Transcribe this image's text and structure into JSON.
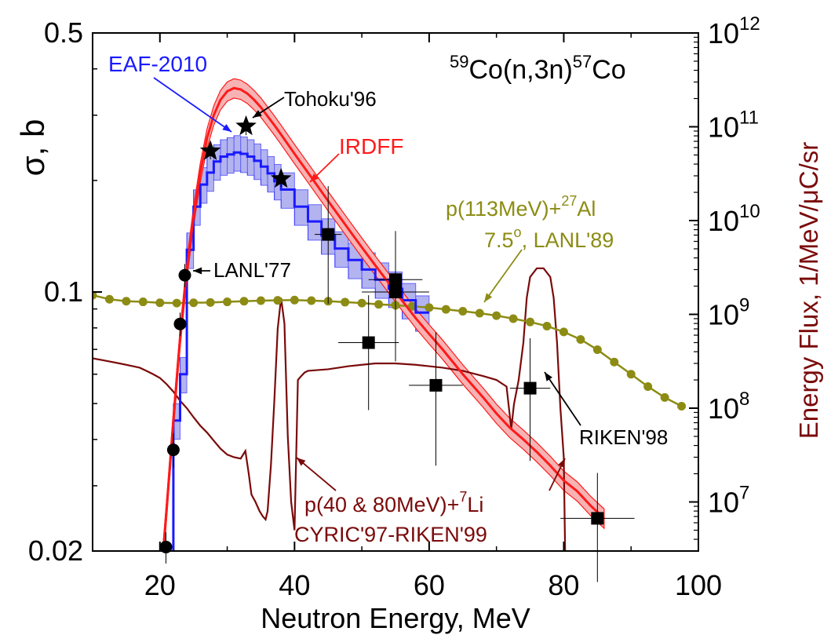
{
  "chart_data": {
    "type": "line",
    "title": "",
    "reaction": {
      "pre": "59",
      "mid": "Co(n,3n)",
      "post": "57",
      "tail": "Co"
    },
    "xlabel": "Neutron Energy,  MeV",
    "ylabel": "σ, b",
    "y2label": {
      "pre": "Energy Flux, 1/MeV/",
      "mu": "μ",
      "post": "C/sr"
    },
    "xlim": [
      10,
      100
    ],
    "ylim": [
      0.02,
      0.5
    ],
    "yscale": "log",
    "y2lim": [
      3000000.0,
      1000000000000.0
    ],
    "y2scale": "log",
    "xticks": [
      20,
      40,
      60,
      80,
      100
    ],
    "yticks": [
      {
        "value": 0.5,
        "label": "0.5"
      },
      {
        "value": 0.1,
        "label": "0.1"
      },
      {
        "value": 0.02,
        "label": "0.02"
      }
    ],
    "y2ticks": [
      {
        "value": 10000000.0,
        "base": "10",
        "exp": "7"
      },
      {
        "value": 100000000.0,
        "base": "10",
        "exp": "8"
      },
      {
        "value": 1000000000.0,
        "base": "10",
        "exp": "9"
      },
      {
        "value": 10000000000.0,
        "base": "10",
        "exp": "10"
      },
      {
        "value": 100000000000.0,
        "base": "10",
        "exp": "11"
      },
      {
        "value": 1000000000000.0,
        "base": "10",
        "exp": "12"
      }
    ],
    "colors": {
      "eaf": "#1a1aff",
      "eaf_band": "#b3b3f0",
      "irdff": "#ff1a1a",
      "irdff_band": "#f7b3b3",
      "al_spectrum": "#8c8c14",
      "li_spectrum": "#7a0a0a",
      "data": "#000000"
    },
    "eaf2010": {
      "label": "EAF-2010",
      "steps": [
        [
          21,
          22,
          0.017
        ],
        [
          22,
          23,
          0.045
        ],
        [
          23,
          24,
          0.06
        ],
        [
          24,
          25,
          0.13
        ],
        [
          25,
          26,
          0.17
        ],
        [
          26,
          27,
          0.195
        ],
        [
          27,
          28,
          0.21
        ],
        [
          28,
          29,
          0.225
        ],
        [
          29,
          30,
          0.232
        ],
        [
          30,
          31,
          0.235
        ],
        [
          31,
          32,
          0.238
        ],
        [
          32,
          33,
          0.236
        ],
        [
          33,
          34,
          0.232
        ],
        [
          34,
          35,
          0.226
        ],
        [
          35,
          36,
          0.218
        ],
        [
          36,
          37,
          0.209
        ],
        [
          37,
          38,
          0.199
        ],
        [
          38,
          40,
          0.189
        ],
        [
          40,
          42,
          0.17
        ],
        [
          42,
          44,
          0.155
        ],
        [
          44,
          46,
          0.142
        ],
        [
          46,
          48,
          0.131
        ],
        [
          48,
          50,
          0.122
        ],
        [
          50,
          52,
          0.115
        ],
        [
          52,
          54,
          0.108
        ],
        [
          54,
          56,
          0.102
        ],
        [
          56,
          58,
          0.095
        ],
        [
          58,
          60,
          0.088
        ]
      ],
      "rel_unc": 0.11
    },
    "irdff": {
      "label": "IRDFF",
      "x": [
        20.5,
        21,
        22,
        23,
        24,
        25,
        26,
        27,
        28,
        29,
        30,
        31,
        32,
        33,
        34,
        35,
        36,
        37,
        38,
        40,
        42,
        45,
        48,
        50,
        52,
        55,
        58,
        60,
        62,
        65,
        68,
        70,
        72,
        74,
        76,
        78,
        80,
        82,
        84,
        86
      ],
      "y": [
        0.02,
        0.026,
        0.045,
        0.075,
        0.115,
        0.16,
        0.21,
        0.26,
        0.3,
        0.33,
        0.348,
        0.355,
        0.352,
        0.343,
        0.33,
        0.315,
        0.298,
        0.282,
        0.266,
        0.236,
        0.21,
        0.176,
        0.148,
        0.132,
        0.118,
        0.1,
        0.085,
        0.077,
        0.07,
        0.06,
        0.052,
        0.047,
        0.043,
        0.04,
        0.037,
        0.034,
        0.031,
        0.029,
        0.0265,
        0.0245
      ],
      "rel_unc": 0.06
    },
    "measurements": [
      {
        "name": "Tohoku'96",
        "marker": "star",
        "points": [
          {
            "x": 27.5,
            "y": 0.24,
            "yerr": 0.012
          },
          {
            "x": 32.8,
            "y": 0.28,
            "yerr": 0.015
          },
          {
            "x": 38.0,
            "y": 0.202,
            "yerr": 0.01
          }
        ]
      },
      {
        "name": "LANL'77",
        "marker": "circle",
        "points": [
          {
            "x": 20.9,
            "y": 0.0205,
            "yerr": 0.002
          },
          {
            "x": 22.0,
            "y": 0.0375,
            "yerr": 0.004
          },
          {
            "x": 23.0,
            "y": 0.082,
            "yerr": 0.006
          },
          {
            "x": 23.7,
            "y": 0.111,
            "yerr": 0.008
          }
        ]
      },
      {
        "name": "CYRIC'97-RIKEN'99",
        "marker": "square",
        "points": [
          {
            "x": 45,
            "y": 0.143,
            "xerr": 2,
            "yerr": 0.05
          },
          {
            "x": 51,
            "y": 0.073,
            "xerr": 4.5,
            "yerr": 0.025
          },
          {
            "x": 55,
            "y": 0.108,
            "xerr": 4,
            "yerr": 0.038
          },
          {
            "x": 55,
            "y": 0.1,
            "xerr": 5,
            "yerr": 0.035
          },
          {
            "x": 61,
            "y": 0.056,
            "xerr": 4,
            "yerr": 0.022
          }
        ]
      },
      {
        "name": "RIKEN'98",
        "marker": "square",
        "points": [
          {
            "x": 75,
            "y": 0.055,
            "xerr": 3,
            "yerr": 0.02
          },
          {
            "x": 85,
            "y": 0.0245,
            "xerr": 5.5,
            "yerr": 0.008
          }
        ]
      }
    ],
    "al_spectrum": {
      "label_pre": "p(113MeV)+",
      "label_sup": "27",
      "label_post": "Al",
      "label2_pre": "7.5",
      "label2_sup": "o",
      "label2_post": ", LANL'89",
      "x": [
        10,
        12.5,
        15,
        17.5,
        20,
        22.5,
        25,
        27.5,
        30,
        32.5,
        35,
        37.5,
        40,
        42.5,
        45,
        47.5,
        50,
        52.5,
        55,
        57.5,
        60,
        62.5,
        65,
        67.5,
        70,
        72.5,
        75,
        77.5,
        80,
        82.5,
        85,
        87.5,
        90,
        92.5,
        95,
        97.5
      ],
      "y": [
        1600000000.0,
        1450000000.0,
        1380000000.0,
        1360000000.0,
        1330000000.0,
        1320000000.0,
        1330000000.0,
        1340000000.0,
        1360000000.0,
        1380000000.0,
        1400000000.0,
        1410000000.0,
        1420000000.0,
        1400000000.0,
        1380000000.0,
        1350000000.0,
        1320000000.0,
        1280000000.0,
        1250000000.0,
        1220000000.0,
        1180000000.0,
        1130000000.0,
        1080000000.0,
        1030000000.0,
        970000000.0,
        900000000.0,
        830000000.0,
        750000000.0,
        650000000.0,
        540000000.0,
        420000000.0,
        310000000.0,
        230000000.0,
        170000000.0,
        130000000.0,
        105000000.0
      ]
    },
    "li_spectrum": {
      "label_pre": "p(40 & 80MeV)+",
      "label_sup": "7",
      "label_post": "Li",
      "x": [
        10,
        12,
        14,
        16,
        17,
        18,
        19,
        20,
        21,
        22,
        23,
        24,
        25,
        26,
        27,
        28,
        29,
        30,
        31,
        32,
        32.7,
        33.2,
        33.6,
        34.2,
        34.8,
        35.3,
        35.7,
        36,
        36.5,
        37,
        37.5,
        38,
        38.5,
        39,
        39.5,
        40,
        40.5,
        41,
        41.5,
        42,
        45,
        48,
        50,
        52,
        55,
        58,
        60,
        62,
        65,
        68,
        70,
        71.5,
        72.2,
        72.6,
        73.3,
        74,
        74.5,
        75,
        76,
        77,
        78,
        78.5,
        79,
        79.5,
        80,
        80.2
      ],
      "y": [
        340000000.0,
        320000000.0,
        300000000.0,
        280000000.0,
        270000000.0,
        250000000.0,
        230000000.0,
        210000000.0,
        180000000.0,
        150000000.0,
        120000000.0,
        100000000.0,
        80000000.0,
        65000000.0,
        55000000.0,
        45000000.0,
        37000000.0,
        32000000.0,
        30000000.0,
        29000000.0,
        35000000.0,
        20000000.0,
        12000000.0,
        10000000.0,
        8000000.0,
        7000000.0,
        6500000.0,
        8000000.0,
        25000000.0,
        120000000.0,
        700000000.0,
        1500000000.0,
        800000000.0,
        50000000.0,
        10000000.0,
        5000000.0,
        200000000.0,
        220000000.0,
        240000000.0,
        250000000.0,
        260000000.0,
        280000000.0,
        290000000.0,
        300000000.0,
        300000000.0,
        290000000.0,
        280000000.0,
        270000000.0,
        250000000.0,
        220000000.0,
        200000000.0,
        170000000.0,
        60000000.0,
        110000000.0,
        200000000.0,
        500000000.0,
        1500000000.0,
        2500000000.0,
        3100000000.0,
        3100000000.0,
        2500000000.0,
        1500000000.0,
        500000000.0,
        100000000.0,
        30000000.0,
        3000000.0
      ]
    },
    "labels": {
      "eaf": "EAF-2010",
      "irdff": "IRDFF",
      "tohoku": "Tohoku'96",
      "lanl77": "LANL'77",
      "riken98": "RIKEN'98",
      "cyric": "CYRIC'97-RIKEN'99"
    }
  }
}
